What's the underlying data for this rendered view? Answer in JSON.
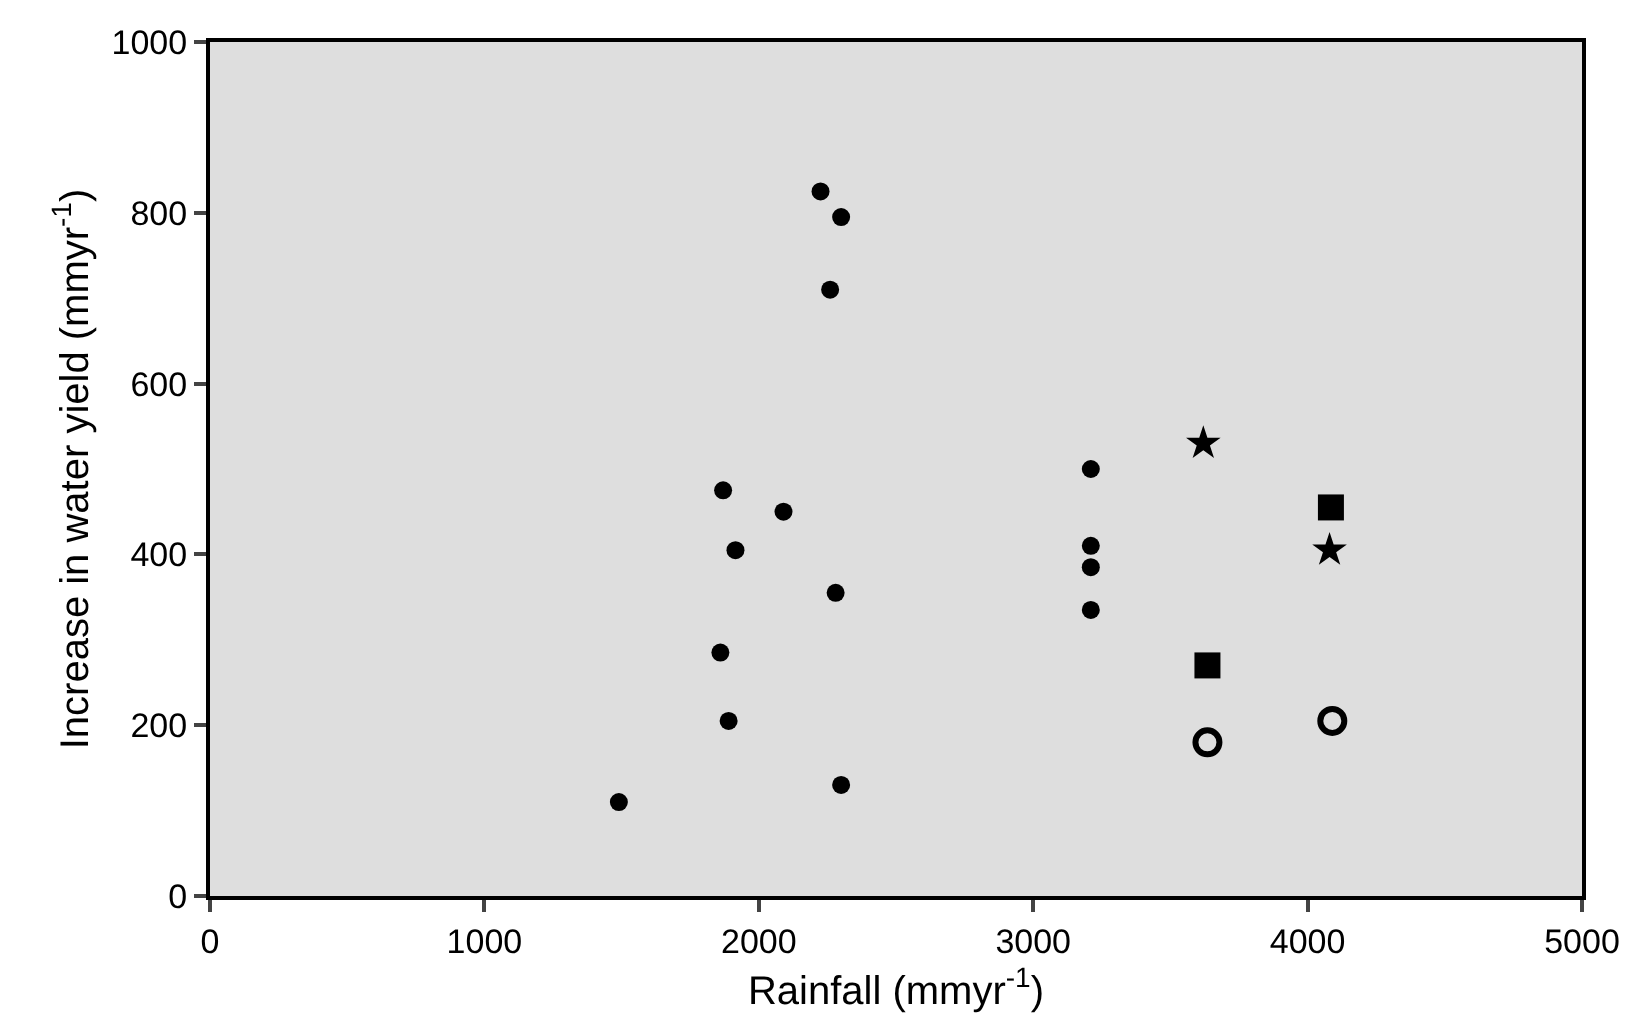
{
  "chart_data": {
    "type": "scatter",
    "xlabel": "Rainfall (mmyr$^{-1}$)",
    "ylabel": "Increase in water yield (mmyr$^{-1}$)",
    "xlim": [
      0,
      5000
    ],
    "xticks": [
      0,
      1000,
      2000,
      3000,
      4000,
      5000
    ],
    "ylim": [
      0,
      1000
    ],
    "yticks": [
      0,
      200,
      400,
      600,
      800,
      1000
    ],
    "series": [
      {
        "color": "#000000",
        "marker": "circle",
        "x": [
          1490,
          1860,
          1890,
          1870,
          1915,
          2090,
          2280,
          2300,
          2225,
          2300,
          2260,
          3210,
          3210,
          3210,
          3210
        ],
        "values": [
          110,
          285,
          205,
          475,
          405,
          450,
          355,
          130,
          825,
          795,
          710,
          500,
          410,
          385,
          335
        ]
      },
      {
        "color": "#000000",
        "marker": "star",
        "x": [
          3620,
          4080
        ],
        "values": [
          530,
          405
        ]
      },
      {
        "color": "#000000",
        "marker": "square",
        "x": [
          4085,
          3635
        ],
        "values": [
          455,
          270
        ]
      },
      {
        "color": "#000000",
        "marker": "circle-open",
        "x": [
          3635,
          4090
        ],
        "values": [
          180,
          205
        ]
      }
    ]
  }
}
